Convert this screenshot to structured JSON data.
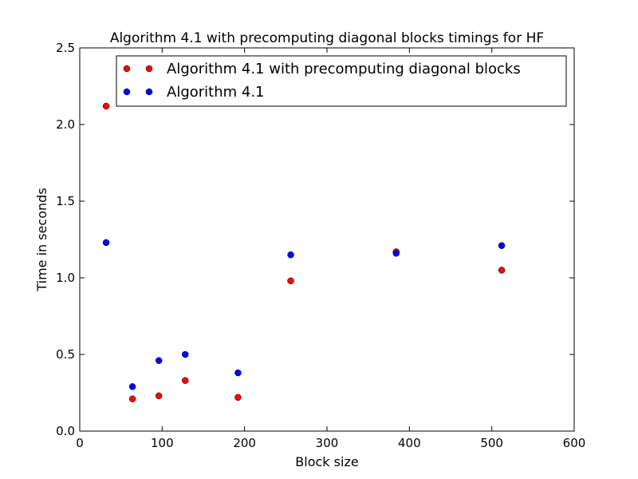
{
  "chart_data": {
    "type": "scatter",
    "title": "Algorithm 4.1 with precomputing diagonal blocks timings for HF",
    "xlabel": "Block size",
    "ylabel": "Time in seconds",
    "xlim": [
      0,
      600
    ],
    "ylim": [
      0.0,
      2.5
    ],
    "xticks": [
      0,
      100,
      200,
      300,
      400,
      500,
      600
    ],
    "xtick_labels": [
      "0",
      "100",
      "200",
      "300",
      "400",
      "500",
      "600"
    ],
    "yticks": [
      0.0,
      0.5,
      1.0,
      1.5,
      2.0,
      2.5
    ],
    "ytick_labels": [
      "0.0",
      "0.5",
      "1.0",
      "1.5",
      "2.0",
      "2.5"
    ],
    "grid": false,
    "legend_position": "top-right",
    "series": [
      {
        "name": "Algorithm 4.1 with precomputing diagonal blocks",
        "color": "#ff0000",
        "x": [
          32,
          64,
          96,
          128,
          192,
          256,
          384,
          512
        ],
        "y": [
          2.12,
          0.21,
          0.23,
          0.33,
          0.22,
          0.98,
          1.17,
          1.05
        ]
      },
      {
        "name": "Algorithm 4.1",
        "color": "#0000ff",
        "x": [
          32,
          64,
          96,
          128,
          192,
          256,
          384,
          512
        ],
        "y": [
          1.23,
          0.29,
          0.46,
          0.5,
          0.38,
          1.15,
          1.16,
          1.21
        ]
      }
    ]
  }
}
